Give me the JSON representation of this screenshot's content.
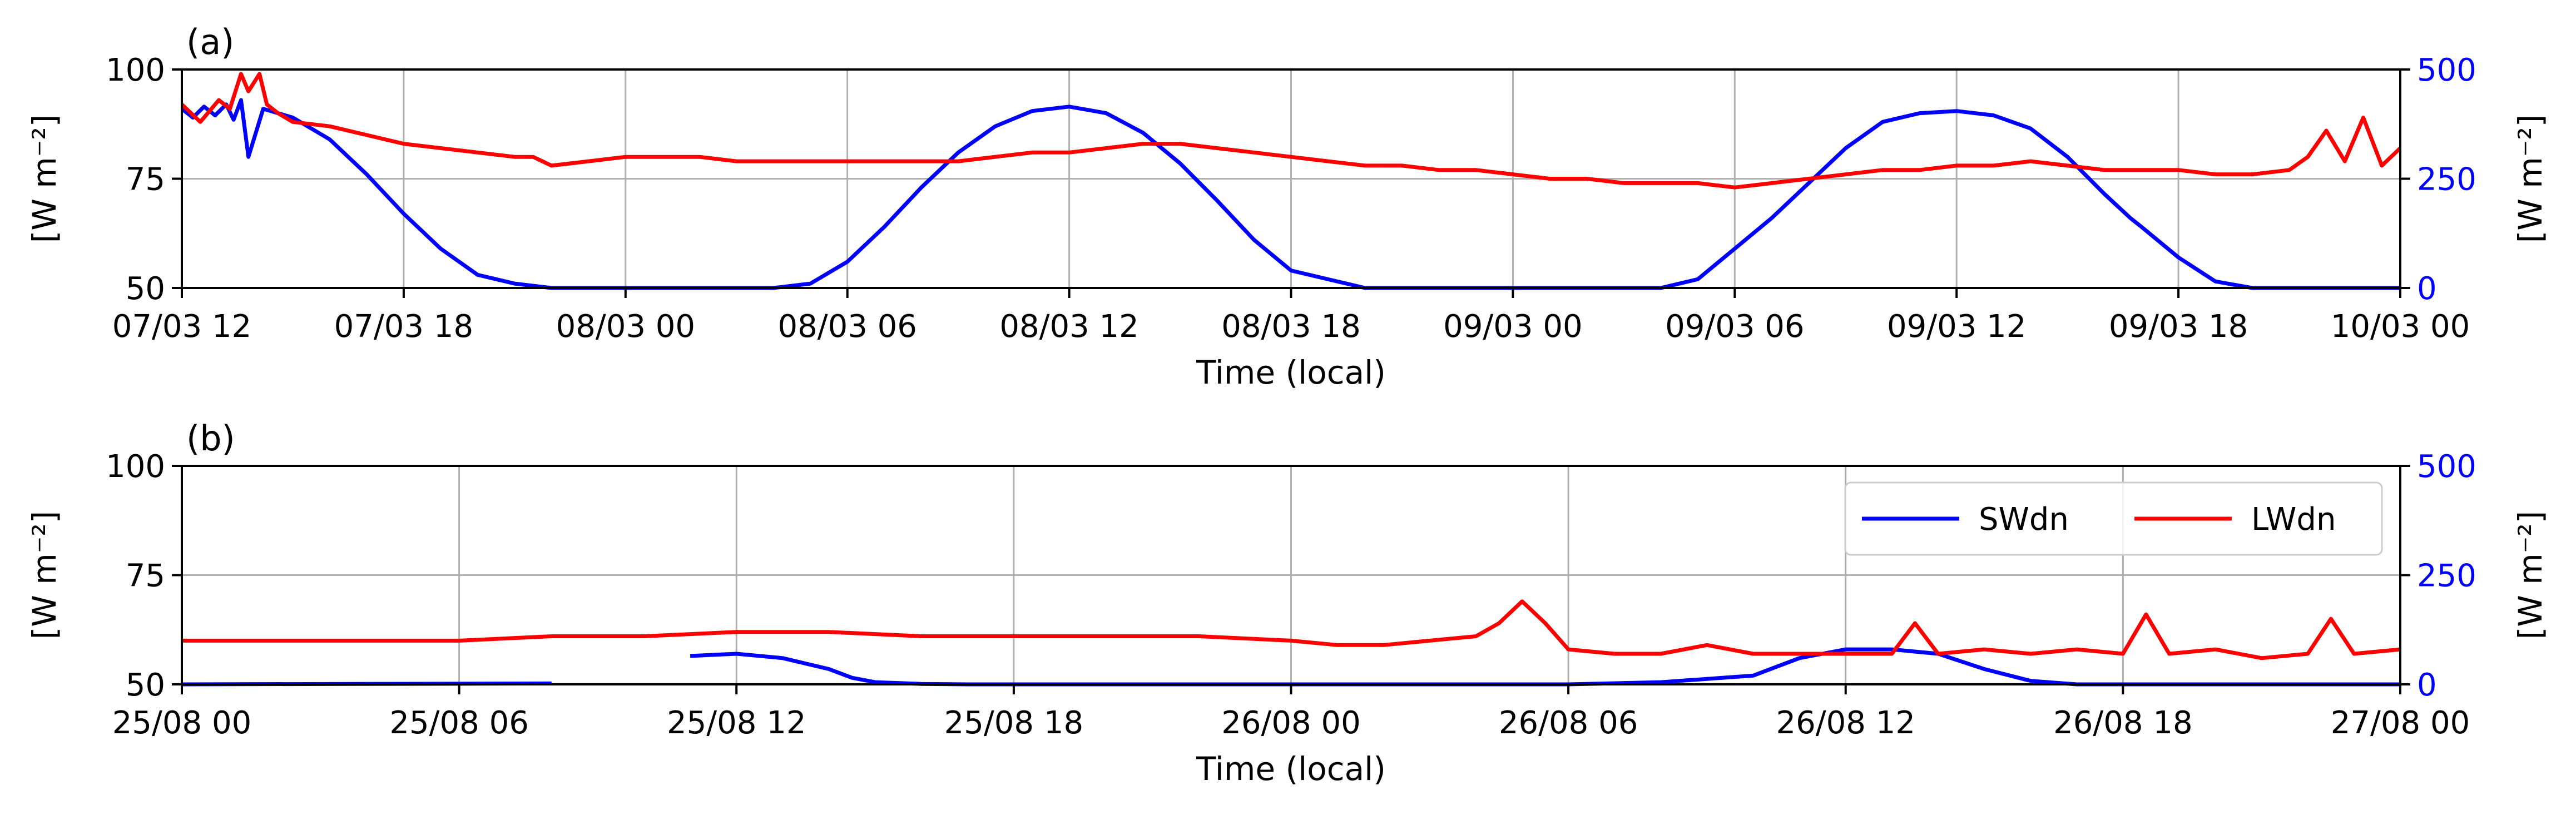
{
  "chart_data": [
    {
      "type": "line",
      "panel_label": "(a)",
      "xlabel": "Time (local)",
      "ylabel_left": "[W m⁻²]",
      "ylabel_right": "[W m⁻²]",
      "xlim_hours": [
        0,
        60
      ],
      "x_ticks": [
        "07/03 12",
        "07/03 18",
        "08/03 00",
        "08/03 06",
        "08/03 12",
        "08/03 18",
        "09/03 00",
        "09/03 06",
        "09/03 12",
        "09/03 18",
        "10/03 00"
      ],
      "ylim_left": [
        50,
        100
      ],
      "yticks_left": [
        "50",
        "75",
        "100"
      ],
      "ylim_right": [
        0,
        500
      ],
      "yticks_right": [
        "0",
        "250",
        "500"
      ],
      "right_axis_color": "#0000ff",
      "grid": true,
      "series": [
        {
          "name": "SWdn",
          "axis": "right",
          "color": "#0000ff",
          "x": [
            0,
            0.3,
            0.6,
            0.9,
            1.2,
            1.4,
            1.6,
            1.8,
            2.2,
            3,
            4,
            5,
            6,
            7,
            8,
            9,
            10,
            12,
            14,
            16,
            17,
            18,
            19,
            20,
            21,
            22,
            23,
            24,
            25,
            26,
            27,
            28,
            29,
            30,
            32,
            36,
            40,
            41,
            42,
            43,
            44,
            45,
            46,
            47,
            48,
            49,
            50,
            51,
            52,
            52.7,
            53,
            54,
            55,
            56,
            60
          ],
          "y": [
            410,
            390,
            415,
            395,
            420,
            385,
            430,
            300,
            410,
            390,
            340,
            260,
            170,
            90,
            30,
            10,
            0,
            0,
            0,
            0,
            10,
            60,
            140,
            230,
            310,
            370,
            405,
            415,
            400,
            355,
            285,
            200,
            110,
            40,
            0,
            0,
            0,
            20,
            90,
            160,
            240,
            320,
            380,
            400,
            405,
            395,
            365,
            300,
            215,
            160,
            140,
            70,
            15,
            0,
            0
          ]
        },
        {
          "name": "LWdn",
          "axis": "left",
          "color": "#ff0000",
          "x": [
            0,
            0.5,
            1,
            1.3,
            1.6,
            1.8,
            2.1,
            2.3,
            2.6,
            3,
            4,
            5,
            6,
            7,
            8,
            9,
            9.5,
            10,
            11,
            12,
            13,
            14,
            15,
            16,
            17,
            18,
            19,
            20,
            21,
            22,
            23,
            24,
            25,
            26,
            27,
            28,
            29,
            30,
            31,
            32,
            33,
            34,
            35,
            36,
            37,
            38,
            39,
            40,
            41,
            42,
            43,
            44,
            45,
            46,
            47,
            48,
            49,
            50,
            51,
            52,
            53,
            54,
            55,
            56,
            57,
            57.5,
            58,
            58.5,
            59,
            59.5,
            60
          ],
          "y": [
            92,
            88,
            93,
            91,
            99,
            95,
            99,
            92,
            90,
            88,
            87,
            85,
            83,
            82,
            81,
            80,
            80,
            78,
            79,
            80,
            80,
            80,
            79,
            79,
            79,
            79,
            79,
            79,
            79,
            80,
            81,
            81,
            82,
            83,
            83,
            82,
            81,
            80,
            79,
            78,
            78,
            77,
            77,
            76,
            75,
            75,
            74,
            74,
            74,
            73,
            74,
            75,
            76,
            77,
            77,
            78,
            78,
            79,
            78,
            77,
            77,
            77,
            76,
            76,
            77,
            80,
            86,
            79,
            89,
            78,
            82
          ]
        }
      ]
    },
    {
      "type": "line",
      "panel_label": "(b)",
      "xlabel": "Time (local)",
      "ylabel_left": "[W m⁻²]",
      "ylabel_right": "[W m⁻²]",
      "xlim_hours": [
        0,
        48
      ],
      "x_ticks": [
        "25/08 00",
        "25/08 06",
        "25/08 12",
        "25/08 18",
        "26/08 00",
        "26/08 06",
        "26/08 12",
        "26/08 18",
        "27/08 00"
      ],
      "ylim_left": [
        50,
        100
      ],
      "yticks_left": [
        "50",
        "75",
        "100"
      ],
      "ylim_right": [
        0,
        500
      ],
      "yticks_right": [
        "0",
        "250",
        "500"
      ],
      "right_axis_color": "#0000ff",
      "grid": true,
      "legend": {
        "location": "top-right",
        "entries": [
          "SWdn",
          "LWdn"
        ]
      },
      "series": [
        {
          "name": "SWdn",
          "axis": "right",
          "color": "#0000ff",
          "segments": [
            {
              "x": [
                0,
                8
              ],
              "y": [
                0,
                2
              ]
            },
            {
              "x": [
                11,
                12,
                13,
                14,
                14.5,
                15,
                16,
                17,
                18,
                20,
                24,
                30,
                32,
                34,
                35,
                36,
                37,
                38,
                39,
                40,
                41,
                42,
                44,
                48
              ],
              "y": [
                65,
                70,
                60,
                35,
                15,
                5,
                1,
                0,
                0,
                0,
                0,
                0,
                5,
                20,
                60,
                80,
                80,
                70,
                35,
                8,
                0,
                0,
                0,
                0
              ]
            }
          ]
        },
        {
          "name": "LWdn",
          "axis": "left",
          "color": "#ff0000",
          "x": [
            0,
            2,
            4,
            6,
            8,
            10,
            12,
            14,
            16,
            18,
            20,
            22,
            24,
            25,
            26,
            27,
            28,
            28.5,
            29,
            29.5,
            30,
            31,
            32,
            33,
            34,
            35,
            36,
            37,
            37.5,
            38,
            39,
            40,
            41,
            42,
            42.5,
            43,
            44,
            45,
            46,
            46.5,
            47,
            48
          ],
          "y": [
            60,
            60,
            60,
            60,
            61,
            61,
            62,
            62,
            61,
            61,
            61,
            61,
            60,
            59,
            59,
            60,
            61,
            64,
            69,
            64,
            58,
            57,
            57,
            59,
            57,
            57,
            57,
            57,
            64,
            57,
            58,
            57,
            58,
            57,
            66,
            57,
            58,
            56,
            57,
            65,
            57,
            58
          ]
        }
      ]
    }
  ]
}
